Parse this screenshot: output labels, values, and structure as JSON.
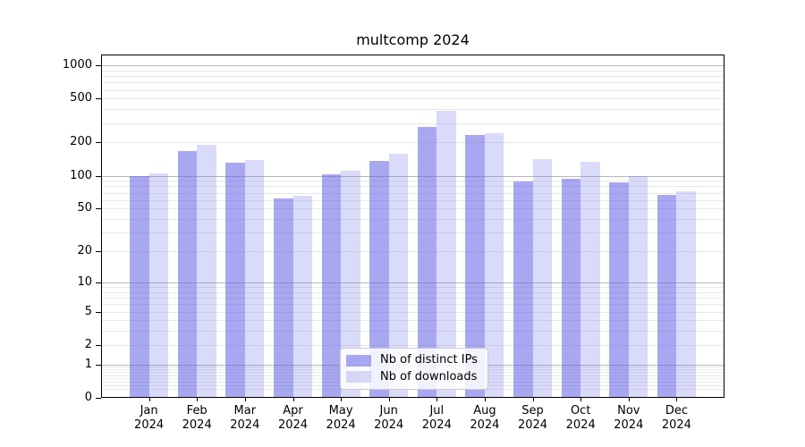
{
  "title": "multcomp 2024",
  "legend": [
    {
      "label": "Nb of distinct IPs"
    },
    {
      "label": "Nb of downloads"
    }
  ],
  "colors": {
    "bar_distinct_ips": "rgba(100,100,230,0.56)",
    "bar_downloads": "rgba(100,100,230,0.24)",
    "grid_major": "#b8b8b8",
    "grid_minor": "#e9e9e9",
    "axis": "#000000",
    "legend_border": "#cccccc"
  },
  "chart_data": {
    "type": "bar",
    "title": "multcomp 2024",
    "year": "2024",
    "categories": [
      "Jan",
      "Feb",
      "Mar",
      "Apr",
      "May",
      "Jun",
      "Jul",
      "Aug",
      "Sep",
      "Oct",
      "Nov",
      "Dec"
    ],
    "series": [
      {
        "name": "Nb of distinct IPs",
        "slug": "distinct-ips",
        "values": [
          100,
          167,
          131,
          62,
          103,
          136,
          277,
          234,
          88,
          93,
          87,
          67
        ]
      },
      {
        "name": "Nb of downloads",
        "slug": "downloads",
        "values": [
          105,
          190,
          139,
          66,
          111,
          158,
          388,
          244,
          142,
          134,
          100,
          72
        ]
      }
    ],
    "yscale": "log10(v+1)",
    "ylim": [
      0,
      1250
    ],
    "yticks": [
      0,
      1,
      2,
      5,
      10,
      20,
      50,
      100,
      200,
      500,
      1000
    ],
    "grid": {
      "orientation": "horizontal",
      "major": [
        1,
        10,
        100,
        1000
      ],
      "minor": [
        0.2,
        0.3,
        0.4,
        0.5,
        0.6,
        0.7,
        0.8,
        0.9,
        2,
        3,
        4,
        5,
        6,
        7,
        8,
        9,
        20,
        30,
        40,
        50,
        60,
        70,
        80,
        90,
        200,
        300,
        400,
        500,
        600,
        700,
        800,
        900
      ]
    },
    "legend_position": "lower center"
  }
}
